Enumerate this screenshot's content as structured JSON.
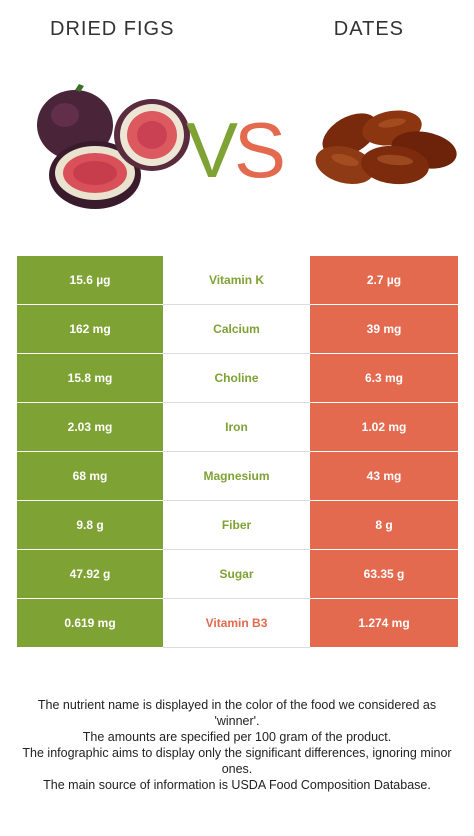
{
  "header": {
    "left_food": "DRIED FIGS",
    "right_food": "DATES",
    "vs_v": "V",
    "vs_s": "S"
  },
  "colors": {
    "left": "#7ea233",
    "right": "#e36a4e"
  },
  "rows": [
    {
      "nutrient": "Vitamin K",
      "left": "15.6 µg",
      "right": "2.7 µg",
      "winner": "left"
    },
    {
      "nutrient": "Calcium",
      "left": "162 mg",
      "right": "39 mg",
      "winner": "left"
    },
    {
      "nutrient": "Choline",
      "left": "15.8 mg",
      "right": "6.3 mg",
      "winner": "left"
    },
    {
      "nutrient": "Iron",
      "left": "2.03 mg",
      "right": "1.02 mg",
      "winner": "left"
    },
    {
      "nutrient": "Magnesium",
      "left": "68 mg",
      "right": "43 mg",
      "winner": "left"
    },
    {
      "nutrient": "Fiber",
      "left": "9.8 g",
      "right": "8 g",
      "winner": "left"
    },
    {
      "nutrient": "Sugar",
      "left": "47.92 g",
      "right": "63.35 g",
      "winner": "left"
    },
    {
      "nutrient": "Vitamin B3",
      "left": "0.619 mg",
      "right": "1.274 mg",
      "winner": "right"
    }
  ],
  "footnote": [
    "The nutrient name is displayed in the color of the food we considered as 'winner'.",
    "The amounts are specified per 100 gram of the product.",
    "The infographic aims to display only the significant differences, ignoring minor ones.",
    "The main source of information is USDA Food Composition Database."
  ]
}
